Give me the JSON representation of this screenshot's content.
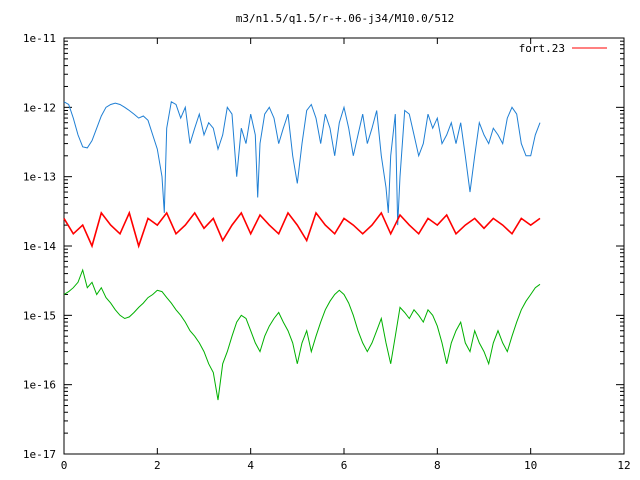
{
  "chart_data": {
    "type": "line",
    "title": "m3/n1.5/q1.5/r-+.06-j34/M10.0/512",
    "xlabel": "",
    "ylabel": "",
    "xlim": [
      0,
      12
    ],
    "ylim": [
      1e-17,
      1e-11
    ],
    "y_scale": "log",
    "grid": false,
    "legend_position": "top-right",
    "x_ticks": [
      "0",
      "2",
      "4",
      "6",
      "8",
      "10",
      "12"
    ],
    "y_ticks": [
      "1e-17",
      "1e-16",
      "1e-15",
      "1e-14",
      "1e-13",
      "1e-12",
      "1e-11"
    ],
    "series": [
      {
        "name": "",
        "color": "#1f7fd4",
        "x": [
          0,
          0.1,
          0.2,
          0.3,
          0.4,
          0.5,
          0.6,
          0.7,
          0.8,
          0.9,
          1.0,
          1.1,
          1.2,
          1.3,
          1.4,
          1.5,
          1.6,
          1.7,
          1.8,
          1.9,
          2.0,
          2.1,
          2.15,
          2.2,
          2.3,
          2.4,
          2.5,
          2.6,
          2.7,
          2.8,
          2.9,
          3.0,
          3.1,
          3.2,
          3.3,
          3.4,
          3.5,
          3.6,
          3.7,
          3.8,
          3.9,
          4.0,
          4.1,
          4.15,
          4.2,
          4.3,
          4.4,
          4.5,
          4.6,
          4.7,
          4.8,
          4.9,
          5.0,
          5.1,
          5.2,
          5.3,
          5.4,
          5.5,
          5.6,
          5.7,
          5.8,
          5.9,
          6.0,
          6.1,
          6.2,
          6.3,
          6.4,
          6.5,
          6.6,
          6.7,
          6.8,
          6.9,
          6.95,
          7.0,
          7.1,
          7.15,
          7.2,
          7.3,
          7.4,
          7.5,
          7.6,
          7.7,
          7.8,
          7.9,
          8.0,
          8.1,
          8.2,
          8.3,
          8.4,
          8.5,
          8.6,
          8.7,
          8.8,
          8.9,
          9.0,
          9.1,
          9.2,
          9.3,
          9.4,
          9.5,
          9.6,
          9.7,
          9.8,
          9.9,
          10.0,
          10.1,
          10.2
        ],
        "y": [
          1.2e-12,
          1.1e-12,
          7e-13,
          4e-13,
          2.7e-13,
          2.6e-13,
          3.3e-13,
          5e-13,
          7.5e-13,
          1e-12,
          1.1e-12,
          1.15e-12,
          1.1e-12,
          1e-12,
          9e-13,
          8e-13,
          7e-13,
          7.5e-13,
          6.5e-13,
          4e-13,
          2.5e-13,
          1e-13,
          3e-14,
          5e-13,
          1.2e-12,
          1.1e-12,
          7e-13,
          1e-12,
          3e-13,
          5e-13,
          8e-13,
          4e-13,
          6e-13,
          5e-13,
          2.5e-13,
          4e-13,
          1e-12,
          8e-13,
          1e-13,
          5e-13,
          3e-13,
          8e-13,
          4e-13,
          5e-14,
          3e-13,
          8e-13,
          1e-12,
          7e-13,
          3e-13,
          5e-13,
          8e-13,
          2e-13,
          8e-14,
          3e-13,
          9e-13,
          1.1e-12,
          7e-13,
          3e-13,
          8e-13,
          5e-13,
          2e-13,
          6e-13,
          1e-12,
          5e-13,
          2e-13,
          4e-13,
          8e-13,
          3e-13,
          5e-13,
          9e-13,
          2e-13,
          7e-14,
          3e-14,
          2e-13,
          8e-13,
          2e-14,
          1e-13,
          9e-13,
          8e-13,
          4e-13,
          2e-13,
          3e-13,
          8e-13,
          5e-13,
          7e-13,
          3e-13,
          4e-13,
          6e-13,
          3e-13,
          6e-13,
          2e-13,
          6e-14,
          2e-13,
          6e-13,
          4e-13,
          3e-13,
          5e-13,
          4e-13,
          3e-13,
          7e-13,
          1e-12,
          8e-13,
          3e-13,
          2e-13,
          2e-13,
          4e-13,
          6e-13
        ]
      },
      {
        "name": "fort.23",
        "color": "#ff0000",
        "x": [
          0,
          0.2,
          0.4,
          0.6,
          0.8,
          1.0,
          1.2,
          1.4,
          1.6,
          1.8,
          2.0,
          2.2,
          2.4,
          2.6,
          2.8,
          3.0,
          3.2,
          3.4,
          3.6,
          3.8,
          4.0,
          4.2,
          4.4,
          4.6,
          4.8,
          5.0,
          5.2,
          5.4,
          5.6,
          5.8,
          6.0,
          6.2,
          6.4,
          6.6,
          6.8,
          7.0,
          7.2,
          7.4,
          7.6,
          7.8,
          8.0,
          8.2,
          8.4,
          8.6,
          8.8,
          9.0,
          9.2,
          9.4,
          9.6,
          9.8,
          10.0,
          10.2
        ],
        "y": [
          2.5e-14,
          1.5e-14,
          2e-14,
          1e-14,
          3e-14,
          2e-14,
          1.5e-14,
          3e-14,
          1e-14,
          2.5e-14,
          2e-14,
          3e-14,
          1.5e-14,
          2e-14,
          3e-14,
          1.8e-14,
          2.5e-14,
          1.2e-14,
          2e-14,
          3e-14,
          1.5e-14,
          2.8e-14,
          2e-14,
          1.5e-14,
          3e-14,
          2e-14,
          1.2e-14,
          3e-14,
          2e-14,
          1.5e-14,
          2.5e-14,
          2e-14,
          1.5e-14,
          2e-14,
          3e-14,
          1.5e-14,
          2.8e-14,
          2e-14,
          1.5e-14,
          2.5e-14,
          2e-14,
          2.8e-14,
          1.5e-14,
          2e-14,
          2.5e-14,
          1.8e-14,
          2.5e-14,
          2e-14,
          1.5e-14,
          2.5e-14,
          2e-14,
          2.5e-14
        ]
      },
      {
        "name": "",
        "color": "#00b000",
        "x": [
          0,
          0.1,
          0.2,
          0.3,
          0.4,
          0.5,
          0.6,
          0.7,
          0.8,
          0.9,
          1.0,
          1.1,
          1.2,
          1.3,
          1.4,
          1.5,
          1.6,
          1.7,
          1.8,
          1.9,
          2.0,
          2.1,
          2.2,
          2.3,
          2.4,
          2.5,
          2.6,
          2.7,
          2.8,
          2.9,
          3.0,
          3.1,
          3.2,
          3.3,
          3.4,
          3.5,
          3.6,
          3.7,
          3.8,
          3.9,
          4.0,
          4.1,
          4.2,
          4.3,
          4.4,
          4.5,
          4.6,
          4.7,
          4.8,
          4.9,
          5.0,
          5.1,
          5.2,
          5.3,
          5.4,
          5.5,
          5.6,
          5.7,
          5.8,
          5.9,
          6.0,
          6.1,
          6.2,
          6.3,
          6.4,
          6.5,
          6.6,
          6.7,
          6.8,
          6.9,
          7.0,
          7.1,
          7.2,
          7.3,
          7.4,
          7.5,
          7.6,
          7.7,
          7.8,
          7.9,
          8.0,
          8.1,
          8.2,
          8.3,
          8.4,
          8.5,
          8.6,
          8.7,
          8.8,
          8.9,
          9.0,
          9.1,
          9.2,
          9.3,
          9.4,
          9.5,
          9.6,
          9.7,
          9.8,
          9.9,
          10.0,
          10.1,
          10.2
        ],
        "y": [
          2e-15,
          2.2e-15,
          2.5e-15,
          3e-15,
          4.5e-15,
          2.5e-15,
          3e-15,
          2e-15,
          2.5e-15,
          1.8e-15,
          1.5e-15,
          1.2e-15,
          1e-15,
          9e-16,
          9.5e-16,
          1.1e-15,
          1.3e-15,
          1.5e-15,
          1.8e-15,
          2e-15,
          2.3e-15,
          2.2e-15,
          1.8e-15,
          1.5e-15,
          1.2e-15,
          1e-15,
          8e-16,
          6e-16,
          5e-16,
          4e-16,
          3e-16,
          2e-16,
          1.5e-16,
          6e-17,
          2e-16,
          3e-16,
          5e-16,
          8e-16,
          1e-15,
          9e-16,
          6e-16,
          4e-16,
          3e-16,
          5e-16,
          7e-16,
          9e-16,
          1.1e-15,
          8e-16,
          6e-16,
          4e-16,
          2e-16,
          4e-16,
          6e-16,
          3e-16,
          5e-16,
          8e-16,
          1.2e-15,
          1.6e-15,
          2e-15,
          2.3e-15,
          2e-15,
          1.5e-15,
          1e-15,
          6e-16,
          4e-16,
          3e-16,
          4e-16,
          6e-16,
          9e-16,
          4e-16,
          2e-16,
          5e-16,
          1.3e-15,
          1.1e-15,
          9e-16,
          1.2e-15,
          1e-15,
          8e-16,
          1.2e-15,
          1e-15,
          7e-16,
          4e-16,
          2e-16,
          4e-16,
          6e-16,
          8e-16,
          4e-16,
          3e-16,
          6e-16,
          4e-16,
          3e-16,
          2e-16,
          4e-16,
          6e-16,
          4e-16,
          3e-16,
          5e-16,
          8e-16,
          1.2e-15,
          1.6e-15,
          2e-15,
          2.5e-15,
          2.8e-15
        ]
      }
    ]
  }
}
